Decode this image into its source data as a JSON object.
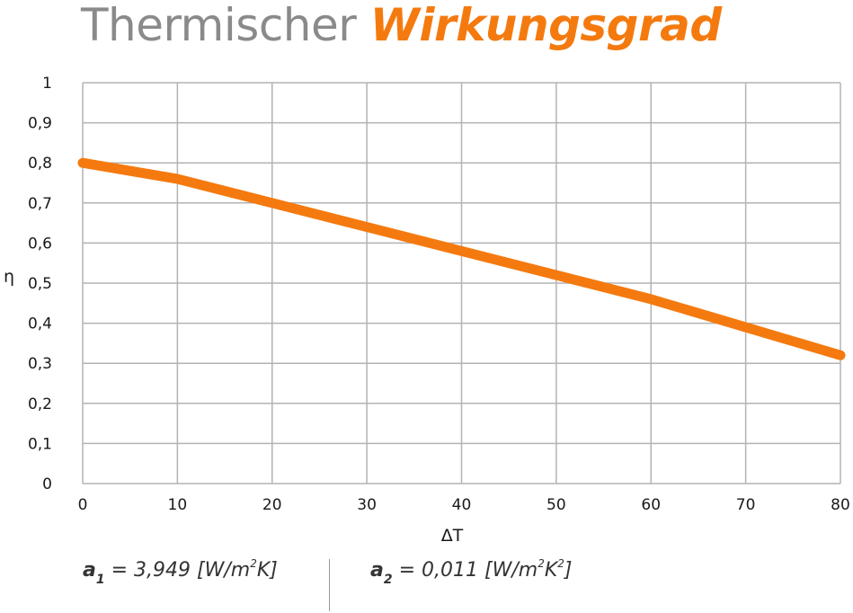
{
  "title": {
    "light": "Thermischer ",
    "bold": "Wirkungsgrad"
  },
  "colors": {
    "accent": "#f47a0f",
    "grid": "#b3b3b3",
    "title_gray": "#8a8a8a"
  },
  "chart_data": {
    "type": "line",
    "title": "Thermischer Wirkungsgrad",
    "xlabel": "ΔT",
    "ylabel": "η",
    "xlim": [
      0,
      80
    ],
    "ylim": [
      0,
      1
    ],
    "x_ticks": [
      "0",
      "10",
      "20",
      "30",
      "40",
      "50",
      "60",
      "70",
      "80"
    ],
    "y_ticks": [
      "0",
      "0,1",
      "0,2",
      "0,3",
      "0,4",
      "0,5",
      "0,6",
      "0,7",
      "0,8",
      "0,9",
      "1"
    ],
    "grid": true,
    "series": [
      {
        "color": "#f47a0f",
        "x": [
          0,
          10,
          20,
          30,
          40,
          50,
          60,
          70,
          80
        ],
        "y": [
          0.8,
          0.76,
          0.7,
          0.64,
          0.58,
          0.52,
          0.46,
          0.39,
          0.32
        ]
      }
    ]
  },
  "coefficients": {
    "a1": {
      "symbol": "a",
      "index": "1",
      "value": " = 3,949 [W/m",
      "exp": "2",
      "unit_tail": "K]"
    },
    "a2": {
      "symbol": "a",
      "index": "2",
      "value": " = 0,011 [W/m",
      "exp": "2",
      "unit_mid": "K",
      "exp2": "2",
      "unit_tail": "]"
    }
  }
}
